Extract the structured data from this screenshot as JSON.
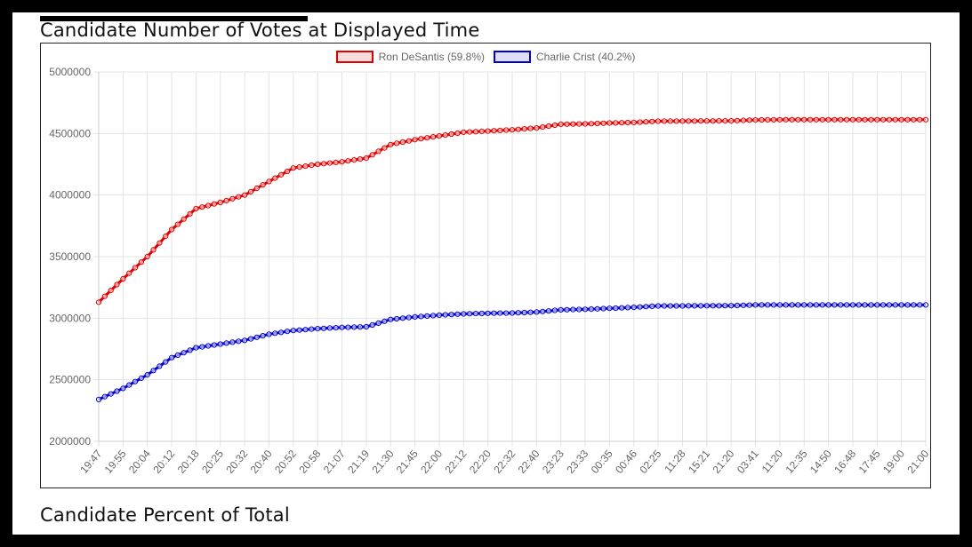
{
  "section1_title": "Candidate Number of Votes at Displayed Time",
  "section2_title": "Candidate Percent of Total",
  "chart_data": {
    "type": "line",
    "title": "Candidate Number of Votes at Displayed Time",
    "ylim": [
      2000000,
      5000000
    ],
    "yticks": [
      2000000,
      2500000,
      3000000,
      3500000,
      4000000,
      4500000,
      5000000
    ],
    "categories": [
      "19:47",
      "19:55",
      "20:04",
      "20:12",
      "20:18",
      "20:25",
      "20:32",
      "20:40",
      "20:52",
      "20:58",
      "21:07",
      "21:19",
      "21:30",
      "21:45",
      "22:00",
      "22:12",
      "22:20",
      "22:32",
      "22:40",
      "23:23",
      "23:33",
      "00:35",
      "00:46",
      "02:25",
      "11:28",
      "15:21",
      "21:20",
      "03:41",
      "11:20",
      "12:35",
      "14:50",
      "16:48",
      "17:45",
      "19:00",
      "21:00"
    ],
    "series": [
      {
        "name": "Ron DeSantis (59.8%)",
        "color": "#e00000",
        "values": [
          3130000,
          3320000,
          3500000,
          3720000,
          3890000,
          3940000,
          4000000,
          4110000,
          4220000,
          4250000,
          4270000,
          4300000,
          4410000,
          4450000,
          4480000,
          4510000,
          4520000,
          4530000,
          4545000,
          4575000,
          4578000,
          4585000,
          4590000,
          4600000,
          4601000,
          4602000,
          4603000,
          4610000,
          4612000,
          4612000,
          4612000,
          4612000,
          4612000,
          4612000,
          4612000
        ]
      },
      {
        "name": "Charlie Crist (40.2%)",
        "color": "#0000cc",
        "values": [
          2340000,
          2430000,
          2540000,
          2680000,
          2760000,
          2790000,
          2820000,
          2870000,
          2900000,
          2915000,
          2925000,
          2930000,
          2990000,
          3010000,
          3025000,
          3035000,
          3040000,
          3042000,
          3050000,
          3068000,
          3072000,
          3080000,
          3088000,
          3100000,
          3100000,
          3101000,
          3102000,
          3108000,
          3108000,
          3108000,
          3108000,
          3108000,
          3108000,
          3108000,
          3108000
        ]
      }
    ]
  }
}
